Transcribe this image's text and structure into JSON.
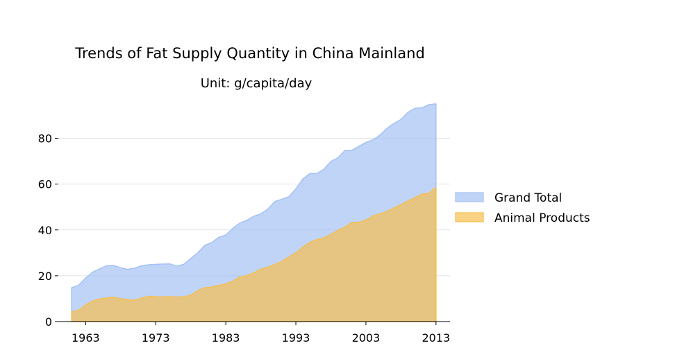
{
  "chart_data": {
    "type": "area",
    "title": "Trends of Fat Supply Quantity in China Mainland",
    "subtitle": "Unit: g/capita/day",
    "xlabel": "",
    "ylabel": "",
    "x": [
      1961,
      1962,
      1963,
      1964,
      1965,
      1966,
      1967,
      1968,
      1969,
      1970,
      1971,
      1972,
      1973,
      1974,
      1975,
      1976,
      1977,
      1978,
      1979,
      1980,
      1981,
      1982,
      1983,
      1984,
      1985,
      1986,
      1987,
      1988,
      1989,
      1990,
      1991,
      1992,
      1993,
      1994,
      1995,
      1996,
      1997,
      1998,
      1999,
      2000,
      2001,
      2002,
      2003,
      2004,
      2005,
      2006,
      2007,
      2008,
      2009,
      2010,
      2011,
      2012,
      2013
    ],
    "series": [
      {
        "name": "Grand Total",
        "color": "#a4c2f4",
        "values": [
          14.8,
          15.9,
          19.0,
          21.6,
          23.0,
          24.4,
          24.5,
          23.5,
          22.8,
          23.3,
          24.4,
          24.8,
          25.0,
          25.1,
          25.2,
          24.2,
          25.0,
          27.5,
          30.0,
          33.3,
          34.5,
          36.8,
          37.8,
          40.7,
          43.0,
          44.2,
          46.0,
          47.0,
          49.1,
          52.4,
          53.4,
          54.5,
          57.9,
          62.3,
          64.6,
          64.6,
          66.5,
          69.9,
          71.5,
          74.7,
          74.8,
          76.5,
          78.2,
          79.3,
          81.4,
          84.3,
          86.5,
          88.2,
          91.3,
          93.1,
          93.3,
          94.7,
          95.0
        ]
      },
      {
        "name": "Animal Products",
        "color": "#f6bf50",
        "values": [
          4.2,
          4.9,
          7.3,
          9.0,
          9.9,
          10.3,
          10.6,
          10.0,
          9.6,
          9.3,
          10.3,
          11.1,
          10.8,
          10.8,
          10.9,
          10.7,
          10.8,
          11.5,
          13.5,
          14.8,
          15.1,
          15.8,
          16.4,
          17.6,
          19.5,
          20.0,
          21.3,
          22.9,
          23.7,
          24.9,
          26.3,
          28.2,
          30.0,
          32.5,
          34.6,
          35.8,
          36.5,
          38.1,
          39.9,
          41.2,
          43.3,
          43.3,
          44.3,
          46.1,
          47.0,
          48.1,
          49.6,
          51.0,
          52.7,
          54.1,
          55.6,
          56.0,
          58.6
        ]
      }
    ],
    "ylim": [
      0,
      98
    ],
    "xlim": [
      1959.1,
      2015.0
    ],
    "xticks": [
      1963,
      1973,
      1983,
      1993,
      2003,
      2013
    ],
    "yticks": [
      0,
      20,
      40,
      60,
      80
    ],
    "grid": "horizontal",
    "legend_position": "right"
  }
}
